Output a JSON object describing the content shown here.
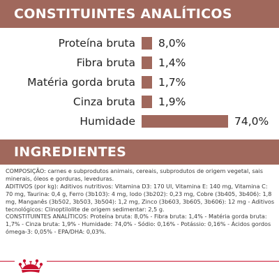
{
  "analytic": {
    "title": "CONSTITUINTES ANALÍTICOS",
    "rows": [
      {
        "label": "Proteína bruta",
        "value": "8,0%",
        "percent": 8.0
      },
      {
        "label": "Fibra bruta",
        "value": "1,4%",
        "percent": 1.4
      },
      {
        "label": "Matéria gorda bruta",
        "value": "1,7%",
        "percent": 1.7
      },
      {
        "label": "Cinza bruta",
        "value": "1,9%",
        "percent": 1.9
      },
      {
        "label": "Humidade",
        "value": "74,0%",
        "percent": 74.0
      }
    ]
  },
  "ingredients": {
    "title": "INGREDIENTES",
    "composition": "COMPOSIÇÃO: carnes e subprodutos animais, cereais, subprodutos de origem vegetal, sais minerais, óleos e gorduras, leveduras.",
    "additives": "ADITIVOS (por kg): Aditivos nutritivos: Vitamina D3: 170 UI, Vitamina E: 140 mg, Vitamina C: 70 mg, Taurina: 0,4 g, Ferro (3b103): 4 mg, Iodo (3b202): 0,23 mg, Cobre (3b405, 3b406): 1,8 mg, Manganês (3b502, 3b503, 3b504): 1,2 mg, Zinco (3b603, 3b605, 3b606): 12 mg - Aditivos tecnológicos: Clinoptilolite de origem sedimentar: 2,5 g.",
    "constituents": "CONSTITUINTES ANALÍTICOS: Proteína bruta: 8,0% - Fibra bruta: 1,4% - Matéria gorda bruta: 1,7% - Cinza bruta: 1,9% - Humidade: 74,0% - Sódio: 0,16% - Potássio: 0,16% - Ácidos gordos ómega-3: 0,05% - EPA/DHA: 0,03%."
  },
  "colors": {
    "band": "#a0685c",
    "accent_line": "#c8102e",
    "logo": "#c8102e"
  },
  "logo_icon": "royal-canin-crown-icon"
}
